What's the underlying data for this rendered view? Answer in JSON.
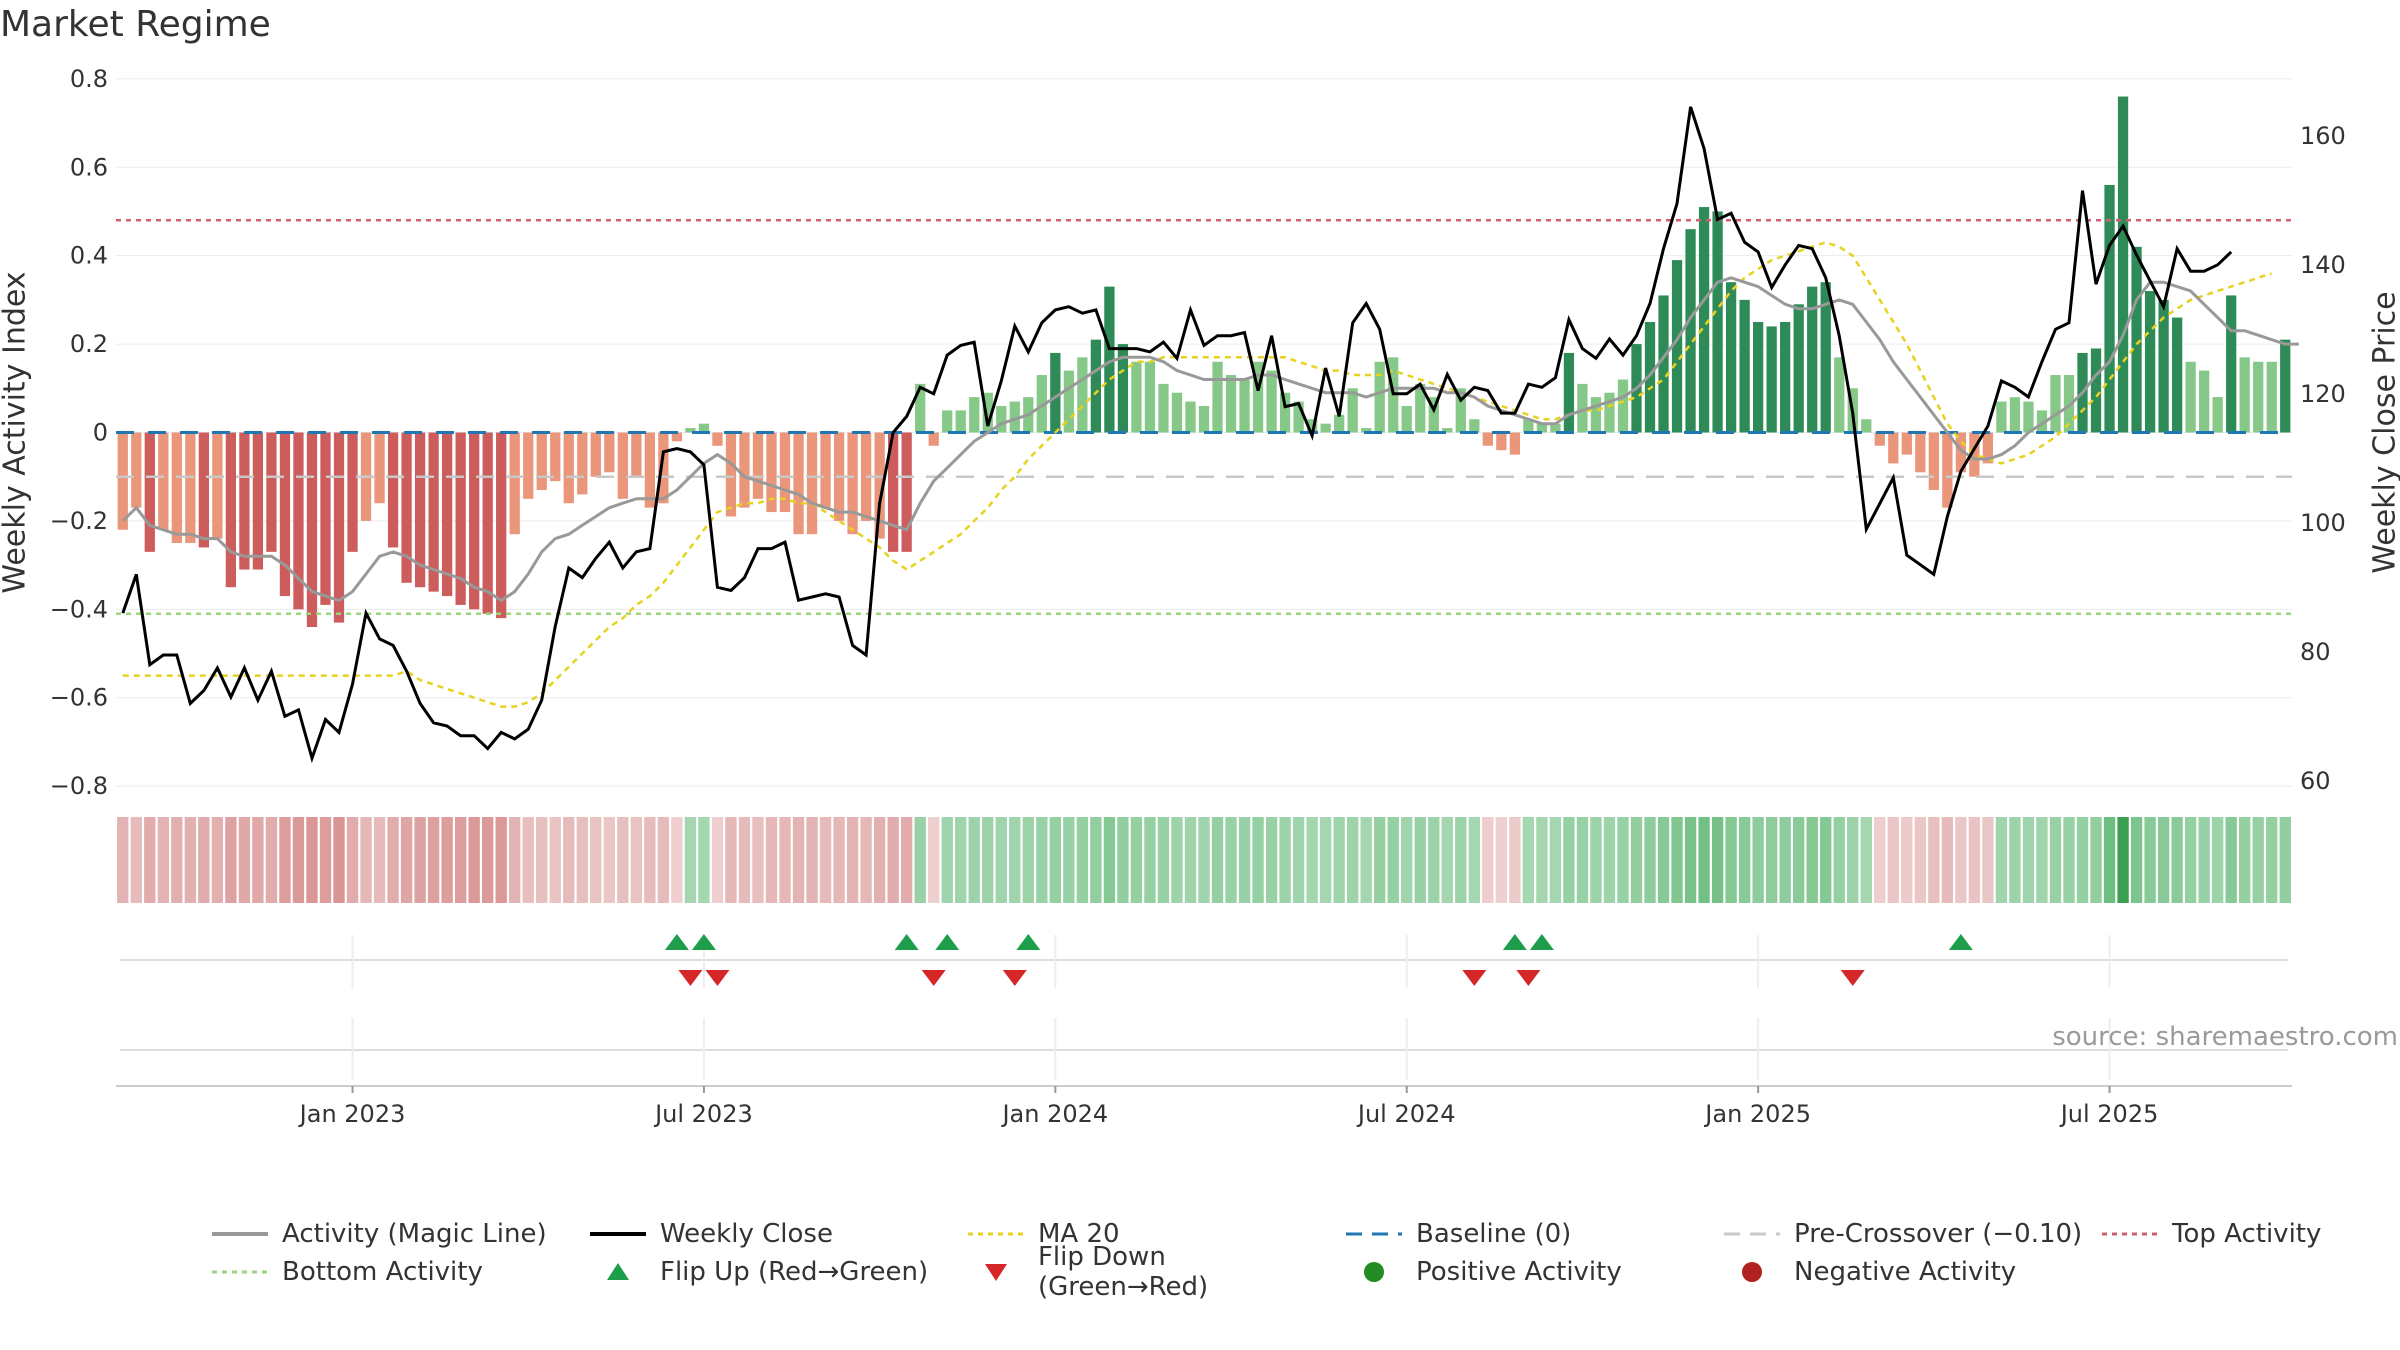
{
  "title": "Market Regime",
  "source_note": "source: sharemaestro.com",
  "colors": {
    "pos_dark": "#2e8b57",
    "pos_light": "#86c888",
    "neg_dark": "#cd5c5c",
    "neg_light": "#e9967a",
    "magic_line": "#999999",
    "close": "#000000",
    "ma20": "#e6d21f",
    "baseline": "#1f77b4",
    "pre_cross": "#c8c8c8",
    "top": "#d06070",
    "bottom": "#9ad67a",
    "flip_up": "#1e9e4a",
    "flip_down": "#d62728"
  },
  "chart_data": {
    "type": "bar",
    "ylabel": "Weekly Activity Index",
    "y2label": "Weekly Close Price",
    "ylim": [
      -0.82,
      0.82
    ],
    "y2lim": [
      57.8,
      170.2
    ],
    "yticks": [
      -0.8,
      -0.6,
      -0.4,
      -0.2,
      0,
      0.2,
      0.4,
      0.6,
      0.8
    ],
    "y2ticks": [
      60,
      80,
      100,
      120,
      140,
      160
    ],
    "x_ticks": [
      {
        "label": "Jan 2023",
        "week": 17
      },
      {
        "label": "Jul 2023",
        "week": 43
      },
      {
        "label": "Jan 2024",
        "week": 69
      },
      {
        "label": "Jul 2024",
        "week": 95
      },
      {
        "label": "Jan 2025",
        "week": 121
      },
      {
        "label": "Jul 2025",
        "week": 147
      }
    ],
    "reference_lines": {
      "baseline": 0,
      "pre_crossover": -0.1,
      "top_activity": 0.48,
      "bottom_activity": -0.41
    },
    "activity": [
      -0.22,
      -0.17,
      -0.27,
      -0.22,
      -0.25,
      -0.25,
      -0.26,
      -0.24,
      -0.35,
      -0.31,
      -0.31,
      -0.27,
      -0.37,
      -0.4,
      -0.44,
      -0.39,
      -0.43,
      -0.27,
      -0.2,
      -0.16,
      -0.26,
      -0.34,
      -0.35,
      -0.36,
      -0.37,
      -0.39,
      -0.4,
      -0.41,
      -0.42,
      -0.23,
      -0.15,
      -0.13,
      -0.11,
      -0.16,
      -0.14,
      -0.1,
      -0.09,
      -0.15,
      -0.1,
      -0.17,
      -0.16,
      -0.02,
      0.01,
      0.02,
      -0.03,
      -0.19,
      -0.17,
      -0.15,
      -0.18,
      -0.18,
      -0.23,
      -0.23,
      -0.17,
      -0.2,
      -0.23,
      -0.2,
      -0.24,
      -0.27,
      -0.27,
      0.11,
      -0.03,
      0.05,
      0.05,
      0.08,
      0.09,
      0.06,
      0.07,
      0.08,
      0.13,
      0.18,
      0.14,
      0.17,
      0.21,
      0.33,
      0.2,
      0.16,
      0.16,
      0.11,
      0.09,
      0.07,
      0.06,
      0.16,
      0.13,
      0.12,
      0.16,
      0.14,
      0.09,
      0.07,
      0.03,
      0.02,
      0.04,
      0.1,
      0.01,
      0.16,
      0.17,
      0.06,
      0.11,
      0.08,
      0.01,
      0.1,
      0.03,
      -0.03,
      -0.04,
      -0.05,
      0.03,
      0.02,
      0.02,
      0.18,
      0.11,
      0.08,
      0.09,
      0.12,
      0.2,
      0.25,
      0.31,
      0.39,
      0.46,
      0.51,
      0.5,
      0.34,
      0.3,
      0.25,
      0.24,
      0.25,
      0.29,
      0.33,
      0.34,
      0.17,
      0.1,
      0.03,
      -0.03,
      -0.07,
      -0.05,
      -0.09,
      -0.13,
      -0.17,
      -0.09,
      -0.1,
      -0.07,
      0.07,
      0.08,
      0.07,
      0.05,
      0.13,
      0.13,
      0.18,
      0.19,
      0.56,
      0.76,
      0.42,
      0.32,
      0.3,
      0.26,
      0.16,
      0.14,
      0.08,
      0.31,
      0.17,
      0.16,
      0.16,
      0.21
    ],
    "magic_line": [
      -0.2,
      -0.17,
      -0.21,
      -0.22,
      -0.23,
      -0.23,
      -0.24,
      -0.24,
      -0.27,
      -0.28,
      -0.28,
      -0.28,
      -0.3,
      -0.33,
      -0.36,
      -0.37,
      -0.38,
      -0.36,
      -0.32,
      -0.28,
      -0.27,
      -0.28,
      -0.3,
      -0.31,
      -0.32,
      -0.33,
      -0.35,
      -0.36,
      -0.38,
      -0.36,
      -0.32,
      -0.27,
      -0.24,
      -0.23,
      -0.21,
      -0.19,
      -0.17,
      -0.16,
      -0.15,
      -0.15,
      -0.15,
      -0.13,
      -0.1,
      -0.07,
      -0.05,
      -0.07,
      -0.1,
      -0.11,
      -0.12,
      -0.13,
      -0.14,
      -0.16,
      -0.17,
      -0.18,
      -0.18,
      -0.19,
      -0.2,
      -0.21,
      -0.22,
      -0.16,
      -0.11,
      -0.08,
      -0.05,
      -0.02,
      0.0,
      0.02,
      0.03,
      0.04,
      0.06,
      0.08,
      0.1,
      0.12,
      0.14,
      0.16,
      0.17,
      0.17,
      0.17,
      0.16,
      0.14,
      0.13,
      0.12,
      0.12,
      0.12,
      0.12,
      0.13,
      0.13,
      0.12,
      0.11,
      0.1,
      0.09,
      0.09,
      0.09,
      0.08,
      0.09,
      0.1,
      0.1,
      0.1,
      0.1,
      0.09,
      0.09,
      0.08,
      0.06,
      0.05,
      0.04,
      0.03,
      0.02,
      0.02,
      0.04,
      0.05,
      0.06,
      0.07,
      0.08,
      0.1,
      0.13,
      0.17,
      0.21,
      0.26,
      0.3,
      0.34,
      0.35,
      0.34,
      0.33,
      0.31,
      0.29,
      0.28,
      0.28,
      0.29,
      0.3,
      0.29,
      0.25,
      0.21,
      0.16,
      0.12,
      0.08,
      0.04,
      0.0,
      -0.04,
      -0.06,
      -0.06,
      -0.05,
      -0.03,
      0.0,
      0.02,
      0.04,
      0.06,
      0.09,
      0.13,
      0.16,
      0.22,
      0.3,
      0.34,
      0.34,
      0.33,
      0.32,
      0.29,
      0.26,
      0.23,
      0.23,
      0.22,
      0.21,
      0.2,
      0.2
    ],
    "ma20": [
      -0.55,
      -0.55,
      -0.55,
      -0.55,
      -0.55,
      -0.55,
      -0.55,
      -0.55,
      -0.55,
      -0.55,
      -0.55,
      -0.55,
      -0.55,
      -0.55,
      -0.55,
      -0.55,
      -0.55,
      -0.55,
      -0.55,
      -0.55,
      -0.55,
      -0.54,
      -0.56,
      -0.57,
      -0.58,
      -0.59,
      -0.6,
      -0.61,
      -0.62,
      -0.62,
      -0.61,
      -0.59,
      -0.56,
      -0.53,
      -0.5,
      -0.47,
      -0.44,
      -0.42,
      -0.39,
      -0.37,
      -0.34,
      -0.3,
      -0.26,
      -0.22,
      -0.18,
      -0.17,
      -0.16,
      -0.16,
      -0.15,
      -0.15,
      -0.16,
      -0.16,
      -0.18,
      -0.2,
      -0.22,
      -0.24,
      -0.26,
      -0.29,
      -0.31,
      -0.29,
      -0.27,
      -0.25,
      -0.23,
      -0.2,
      -0.17,
      -0.13,
      -0.1,
      -0.06,
      -0.03,
      0.0,
      0.03,
      0.06,
      0.09,
      0.12,
      0.14,
      0.16,
      0.16,
      0.17,
      0.17,
      0.17,
      0.17,
      0.17,
      0.17,
      0.17,
      0.17,
      0.17,
      0.17,
      0.16,
      0.15,
      0.14,
      0.14,
      0.13,
      0.13,
      0.13,
      0.14,
      0.13,
      0.12,
      0.11,
      0.1,
      0.09,
      0.08,
      0.07,
      0.06,
      0.05,
      0.04,
      0.03,
      0.03,
      0.04,
      0.05,
      0.05,
      0.06,
      0.07,
      0.08,
      0.1,
      0.12,
      0.16,
      0.2,
      0.24,
      0.28,
      0.32,
      0.35,
      0.37,
      0.39,
      0.4,
      0.41,
      0.42,
      0.43,
      0.42,
      0.4,
      0.35,
      0.3,
      0.25,
      0.2,
      0.14,
      0.08,
      0.02,
      -0.02,
      -0.05,
      -0.06,
      -0.07,
      -0.06,
      -0.05,
      -0.03,
      -0.01,
      0.02,
      0.05,
      0.08,
      0.12,
      0.16,
      0.2,
      0.23,
      0.26,
      0.28,
      0.3,
      0.31,
      0.32,
      0.33,
      0.34,
      0.35,
      0.36
    ],
    "weekly_close": [
      86.0,
      92.0,
      78.0,
      79.5,
      79.5,
      72.0,
      74.0,
      77.5,
      73.0,
      77.5,
      72.5,
      77.0,
      70.0,
      71.0,
      63.5,
      69.5,
      67.5,
      75.0,
      86.0,
      82.0,
      81.0,
      77.0,
      72.0,
      69.0,
      68.5,
      67.0,
      67.0,
      65.0,
      67.5,
      66.5,
      68.0,
      72.5,
      84.0,
      93.0,
      91.5,
      94.5,
      97.0,
      93.0,
      95.5,
      96.0,
      111.0,
      111.5,
      111.0,
      109.0,
      90.0,
      89.5,
      91.5,
      96.0,
      96.0,
      97.0,
      88.0,
      88.5,
      89.0,
      88.5,
      81.0,
      79.5,
      103.0,
      114.0,
      116.5,
      121.0,
      120.0,
      126.0,
      127.5,
      128.0,
      115.0,
      122.0,
      130.5,
      126.5,
      131.0,
      133.0,
      133.5,
      132.5,
      133.0,
      127.0,
      127.0,
      127.0,
      126.5,
      128.0,
      125.5,
      133.0,
      127.5,
      129.0,
      129.0,
      129.5,
      120.5,
      129.0,
      118.0,
      118.5,
      113.5,
      124.0,
      116.5,
      131.0,
      134.0,
      130.0,
      120.0,
      120.0,
      121.5,
      117.5,
      123.0,
      119.0,
      121.0,
      120.5,
      117.0,
      117.0,
      121.5,
      121.0,
      122.5,
      131.5,
      127.0,
      125.5,
      128.5,
      126.0,
      129.0,
      134.0,
      142.5,
      149.5,
      164.5,
      158.0,
      147.0,
      148.0,
      143.5,
      142.0,
      136.5,
      140.0,
      143.0,
      142.5,
      138.0,
      129.0,
      117.0,
      99.0,
      103.0,
      107.0,
      95.0,
      93.5,
      92.0,
      101.0,
      108.0,
      111.5,
      115.0,
      122.0,
      121.0,
      119.5,
      125.0,
      130.0,
      131.0,
      151.5,
      137.0,
      143.0,
      146.0,
      141.5,
      137.5,
      133.5,
      142.5,
      139.0,
      139.0,
      140.0,
      142.0
    ],
    "flip_up_weeks": [
      41,
      43,
      58,
      61,
      67,
      103,
      105,
      136
    ],
    "flip_down_weeks": [
      42,
      44,
      60,
      66,
      100,
      104,
      128
    ]
  },
  "legend": [
    {
      "label": "Activity (Magic Line)",
      "icon": "solid-gray-line"
    },
    {
      "label": "Weekly Close",
      "icon": "solid-black-line"
    },
    {
      "label": "MA 20",
      "icon": "dotted-yellow-line"
    },
    {
      "label": "Baseline (0)",
      "icon": "dashed-blue-line"
    },
    {
      "label": "Pre-Crossover (−0.10)",
      "icon": "dashed-gray-line"
    },
    {
      "label": "Top Activity",
      "icon": "dotted-red-line"
    },
    {
      "label": "Bottom Activity",
      "icon": "dotted-green-line"
    },
    {
      "label": "Flip Up (Red→Green)",
      "icon": "triangle-up-icon"
    },
    {
      "label": "Flip Down (Green→Red)",
      "icon": "triangle-down-icon"
    },
    {
      "label": "Positive Activity",
      "icon": "green-dot-icon"
    },
    {
      "label": "Negative Activity",
      "icon": "red-dot-icon"
    }
  ]
}
